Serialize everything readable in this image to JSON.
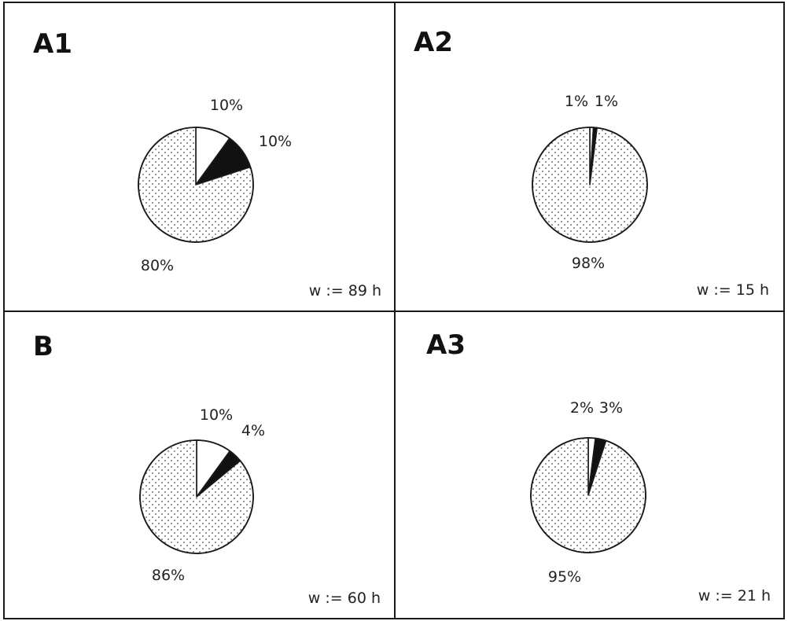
{
  "chart_data": [
    {
      "type": "pie",
      "panel": "A1",
      "slices": [
        {
          "value": 10,
          "label": "10%",
          "fill": "white"
        },
        {
          "value": 10,
          "label": "10%",
          "fill": "black"
        },
        {
          "value": 80,
          "label": "80%",
          "fill": "dotted"
        }
      ],
      "annotation": "w := 89 h"
    },
    {
      "type": "pie",
      "panel": "A2",
      "slices": [
        {
          "value": 1,
          "label": "1%",
          "fill": "white"
        },
        {
          "value": 1,
          "label": "1%",
          "fill": "black"
        },
        {
          "value": 98,
          "label": "98%",
          "fill": "dotted"
        }
      ],
      "annotation": "w := 15 h"
    },
    {
      "type": "pie",
      "panel": "B",
      "slices": [
        {
          "value": 10,
          "label": "10%",
          "fill": "white"
        },
        {
          "value": 4,
          "label": "4%",
          "fill": "black"
        },
        {
          "value": 86,
          "label": "86%",
          "fill": "dotted"
        }
      ],
      "annotation": "w := 60 h"
    },
    {
      "type": "pie",
      "panel": "A3",
      "slices": [
        {
          "value": 2,
          "label": "2%",
          "fill": "white"
        },
        {
          "value": 3,
          "label": "3%",
          "fill": "black"
        },
        {
          "value": 95,
          "label": "95%",
          "fill": "dotted"
        }
      ],
      "annotation": "w := 21 h"
    }
  ],
  "colors": {
    "black_slice": "#111111",
    "white_slice": "#ffffff",
    "dot": "#555555",
    "outline": "#1a1a1a"
  }
}
